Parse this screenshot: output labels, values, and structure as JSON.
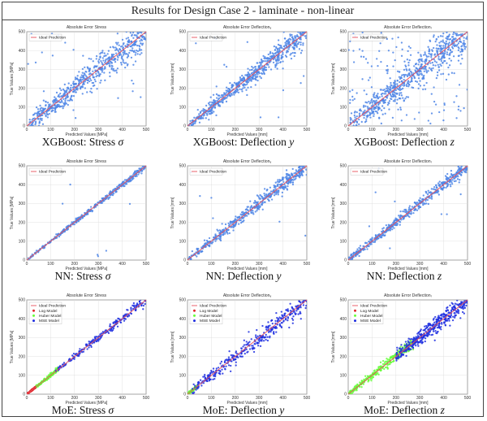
{
  "header": {
    "title": "Results for Design Case 2 - laminate - non-linear"
  },
  "colors": {
    "ideal": "#e8505b",
    "points": "#4f86e6",
    "log": "#e0262c",
    "huber": "#66ff3a",
    "mse": "#1f2fe0",
    "grid": "#d9d9d9",
    "axis": "#333333"
  },
  "chart_data": [
    {
      "type": "scatter",
      "title": "Absolute Error Stress",
      "xlabel": "Predicted Values [MPa]",
      "ylabel": "True Values [MPa]",
      "xlim": [
        0,
        500
      ],
      "ylim": [
        0,
        500
      ],
      "xticks": [
        0,
        100,
        200,
        300,
        400,
        500
      ],
      "yticks": [
        0,
        100,
        200,
        300,
        400,
        500
      ],
      "legend": [
        "Ideal Prediction"
      ],
      "legend_position": "top-left",
      "grid": true,
      "caption": {
        "text": "XGBoost: Stress ",
        "symbol": "σ"
      },
      "spread": 38,
      "outliers": 22,
      "points": 650,
      "series": [
        {
          "name": "Ideal Prediction",
          "x": [
            0,
            500
          ],
          "y": [
            0,
            500
          ]
        }
      ]
    },
    {
      "type": "scatter",
      "title": "Absolute Error Deflectionᵧ",
      "xlabel": "Predicted Values [mm]",
      "ylabel": "True Values [mm]",
      "xlim": [
        0,
        500
      ],
      "ylim": [
        0,
        500
      ],
      "xticks": [
        0,
        100,
        200,
        300,
        400,
        500
      ],
      "yticks": [
        0,
        100,
        200,
        300,
        400,
        500
      ],
      "legend": [
        "Ideal Prediction"
      ],
      "legend_position": "top-left",
      "grid": true,
      "caption": {
        "text": "XGBoost: Deflection ",
        "symbol": "y"
      },
      "spread": 26,
      "outliers": 18,
      "points": 650,
      "series": [
        {
          "name": "Ideal Prediction",
          "x": [
            0,
            500
          ],
          "y": [
            0,
            500
          ]
        }
      ]
    },
    {
      "type": "scatter",
      "title": "Absolute Error Deflectionᵣ",
      "xlabel": "Predicted Values [mm]",
      "ylabel": "True Values [mm]",
      "xlim": [
        0,
        500
      ],
      "ylim": [
        0,
        500
      ],
      "xticks": [
        0,
        100,
        200,
        300,
        400,
        500
      ],
      "yticks": [
        0,
        100,
        200,
        300,
        400,
        500
      ],
      "legend": [
        "Ideal Prediction"
      ],
      "legend_position": "top-left",
      "grid": true,
      "caption": {
        "text": "XGBoost: Deflection ",
        "symbol": "z"
      },
      "spread": 45,
      "outliers": 140,
      "points": 650,
      "series": [
        {
          "name": "Ideal Prediction",
          "x": [
            0,
            500
          ],
          "y": [
            0,
            500
          ]
        }
      ]
    },
    {
      "type": "scatter",
      "title": "Absolute Error Stress",
      "xlabel": "Predicted Values [MPa]",
      "ylabel": "True Values [MPa]",
      "xlim": [
        0,
        500
      ],
      "ylim": [
        0,
        500
      ],
      "xticks": [
        0,
        100,
        200,
        300,
        400,
        500
      ],
      "yticks": [
        0,
        100,
        200,
        300,
        400,
        500
      ],
      "legend": [
        "Ideal Prediction"
      ],
      "legend_position": "top-left",
      "grid": true,
      "caption": {
        "text": "NN: Stress ",
        "symbol": "σ"
      },
      "spread": 7,
      "outliers": 6,
      "points": 420,
      "series": [
        {
          "name": "Ideal Prediction",
          "x": [
            0,
            500
          ],
          "y": [
            0,
            500
          ]
        }
      ]
    },
    {
      "type": "scatter",
      "title": "Absolute Error Deflectionᵧ",
      "xlabel": "Predicted Values [mm]",
      "ylabel": "True Values [mm]",
      "xlim": [
        0,
        500
      ],
      "ylim": [
        0,
        500
      ],
      "xticks": [
        0,
        100,
        200,
        300,
        400,
        500
      ],
      "yticks": [
        0,
        100,
        200,
        300,
        400,
        500
      ],
      "legend": [
        "Ideal Prediction"
      ],
      "legend_position": "top-left",
      "grid": true,
      "caption": {
        "text": "NN: Deflection ",
        "symbol": "y"
      },
      "spread": 18,
      "outliers": 8,
      "points": 520,
      "series": [
        {
          "name": "Ideal Prediction",
          "x": [
            0,
            500
          ],
          "y": [
            0,
            500
          ]
        }
      ]
    },
    {
      "type": "scatter",
      "title": "Absolute Error Deflectionᵣ",
      "xlabel": "Predicted Values [mm]",
      "ylabel": "True Values [mm]",
      "xlim": [
        0,
        500
      ],
      "ylim": [
        0,
        500
      ],
      "xticks": [
        0,
        100,
        200,
        300,
        400,
        500
      ],
      "yticks": [
        0,
        100,
        200,
        300,
        400,
        500
      ],
      "legend": [
        "Ideal Prediction"
      ],
      "legend_position": "top-left",
      "grid": true,
      "caption": {
        "text": "NN: Deflection ",
        "symbol": "z"
      },
      "spread": 15,
      "outliers": 8,
      "points": 520,
      "series": [
        {
          "name": "Ideal Prediction",
          "x": [
            0,
            500
          ],
          "y": [
            0,
            500
          ]
        }
      ]
    },
    {
      "type": "scatter",
      "title": "Absolute Error Stress",
      "xlabel": "Predicted Values [MPa]",
      "ylabel": "True Values [MPa]",
      "xlim": [
        0,
        500
      ],
      "ylim": [
        0,
        500
      ],
      "xticks": [
        0,
        100,
        200,
        300,
        400,
        500
      ],
      "yticks": [
        0,
        100,
        200,
        300,
        400,
        500
      ],
      "legend": [
        "Ideal Prediction",
        "Log Model",
        "Huber Model",
        "MSE Model"
      ],
      "legend_position": "top-left",
      "grid": true,
      "caption": {
        "text": "MoE: Stress ",
        "symbol": "σ"
      },
      "spread": 9,
      "outliers": 0,
      "points": 520,
      "experts": [
        {
          "name": "Log Model",
          "from": 0,
          "to": 45,
          "spread": 4
        },
        {
          "name": "Huber Model",
          "from": 40,
          "to": 130,
          "spread": 8
        },
        {
          "name": "MSE Model",
          "from": 120,
          "to": 500,
          "spread": 10
        }
      ],
      "series": [
        {
          "name": "Ideal Prediction",
          "x": [
            0,
            500
          ],
          "y": [
            0,
            500
          ]
        }
      ]
    },
    {
      "type": "scatter",
      "title": "Absolute Error Deflectionᵧ",
      "xlabel": "Predicted Values [mm]",
      "ylabel": "True Values [mm]",
      "xlim": [
        0,
        500
      ],
      "ylim": [
        0,
        500
      ],
      "xticks": [
        0,
        100,
        200,
        300,
        400,
        500
      ],
      "yticks": [
        0,
        100,
        200,
        300,
        400,
        500
      ],
      "legend": [
        "Ideal Prediction",
        "Log Model",
        "Huber Model",
        "MSE Model"
      ],
      "legend_position": "top-left",
      "grid": true,
      "caption": {
        "text": "MoE: Deflection ",
        "symbol": "y"
      },
      "spread": 20,
      "outliers": 0,
      "points": 560,
      "experts": [
        {
          "name": "Huber Model",
          "from": 0,
          "to": 40,
          "spread": 6
        },
        {
          "name": "MSE Model",
          "from": 20,
          "to": 500,
          "spread": 22
        }
      ],
      "series": [
        {
          "name": "Ideal Prediction",
          "x": [
            0,
            500
          ],
          "y": [
            0,
            500
          ]
        }
      ]
    },
    {
      "type": "scatter",
      "title": "Absolute Error Deflectionᵣ",
      "xlabel": "Predicted Values [mm]",
      "ylabel": "True Values [mm]",
      "xlim": [
        0,
        500
      ],
      "ylim": [
        0,
        500
      ],
      "xticks": [
        0,
        100,
        200,
        300,
        400,
        500
      ],
      "yticks": [
        0,
        100,
        200,
        300,
        400,
        500
      ],
      "legend": [
        "Ideal Prediction",
        "Log Model",
        "Huber Model",
        "MSE Model"
      ],
      "legend_position": "top-left",
      "grid": true,
      "caption": {
        "text": "MoE: Deflection ",
        "symbol": "z"
      },
      "spread": 18,
      "outliers": 0,
      "points": 600,
      "experts": [
        {
          "name": "Huber Model",
          "from": 0,
          "to": 280,
          "spread": 16
        },
        {
          "name": "MSE Model",
          "from": 200,
          "to": 500,
          "spread": 20
        }
      ],
      "series": [
        {
          "name": "Ideal Prediction",
          "x": [
            0,
            500
          ],
          "y": [
            0,
            500
          ]
        }
      ]
    }
  ]
}
